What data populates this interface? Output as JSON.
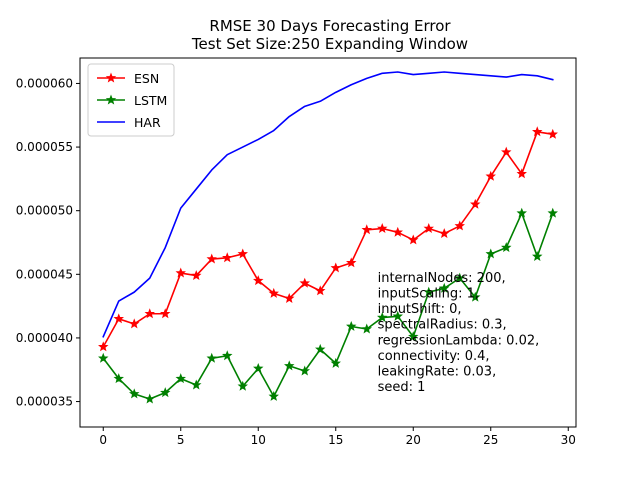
{
  "chart_data": {
    "type": "line",
    "title_lines": [
      "RMSE 30 Days Forecasting Error",
      "Test Set Size:250  Expanding Window"
    ],
    "xlabel": "",
    "ylabel": "",
    "xlim": [
      -1.5,
      30.5
    ],
    "ylim": [
      3.3e-05,
      6.2e-05
    ],
    "x_ticks": [
      0,
      5,
      10,
      15,
      20,
      25,
      30
    ],
    "x_tick_labels": [
      "0",
      "5",
      "10",
      "15",
      "20",
      "25",
      "30"
    ],
    "y_ticks": [
      3.5e-05,
      4e-05,
      4.5e-05,
      5e-05,
      5.5e-05,
      6e-05
    ],
    "y_tick_labels": [
      "0.000035",
      "0.000040",
      "0.000045",
      "0.000050",
      "0.000055",
      "0.000060"
    ],
    "grid": false,
    "legend_position": "top-left",
    "x": [
      0,
      1,
      2,
      3,
      4,
      5,
      6,
      7,
      8,
      9,
      10,
      11,
      12,
      13,
      14,
      15,
      16,
      17,
      18,
      19,
      20,
      21,
      22,
      23,
      24,
      25,
      26,
      27,
      28,
      29
    ],
    "series": [
      {
        "name": "ESN",
        "color": "#ff0000",
        "marker": "star",
        "values": [
          3.93e-05,
          4.15e-05,
          4.11e-05,
          4.19e-05,
          4.19e-05,
          4.51e-05,
          4.49e-05,
          4.62e-05,
          4.63e-05,
          4.66e-05,
          4.45e-05,
          4.35e-05,
          4.31e-05,
          4.43e-05,
          4.37e-05,
          4.55e-05,
          4.59e-05,
          4.85e-05,
          4.86e-05,
          4.83e-05,
          4.77e-05,
          4.86e-05,
          4.82e-05,
          4.88e-05,
          5.05e-05,
          5.27e-05,
          5.46e-05,
          5.29e-05,
          5.62e-05,
          5.6e-05
        ]
      },
      {
        "name": "LSTM",
        "color": "#008000",
        "marker": "star",
        "values": [
          3.84e-05,
          3.68e-05,
          3.56e-05,
          3.52e-05,
          3.57e-05,
          3.68e-05,
          3.63e-05,
          3.84e-05,
          3.86e-05,
          3.62e-05,
          3.76e-05,
          3.54e-05,
          3.78e-05,
          3.74e-05,
          3.91e-05,
          3.8e-05,
          4.09e-05,
          4.07e-05,
          4.16e-05,
          4.17e-05,
          4.01e-05,
          4.36e-05,
          4.39e-05,
          4.47e-05,
          4.32e-05,
          4.66e-05,
          4.71e-05,
          4.98e-05,
          4.64e-05,
          4.98e-05
        ]
      },
      {
        "name": "HAR",
        "color": "#0000ff",
        "marker": "none",
        "values": [
          4.01e-05,
          4.29e-05,
          4.36e-05,
          4.47e-05,
          4.71e-05,
          5.02e-05,
          5.17e-05,
          5.32e-05,
          5.44e-05,
          5.5e-05,
          5.56e-05,
          5.63e-05,
          5.74e-05,
          5.82e-05,
          5.86e-05,
          5.93e-05,
          5.99e-05,
          6.04e-05,
          6.08e-05,
          6.09e-05,
          6.07e-05,
          6.08e-05,
          6.09e-05,
          6.08e-05,
          6.07e-05,
          6.06e-05,
          6.05e-05,
          6.07e-05,
          6.06e-05,
          6.03e-05
        ]
      }
    ],
    "annotation": {
      "x": 17.7,
      "y": 4.44e-05,
      "lines": [
        "internalNodes: 200,",
        "inputScaling: 1,",
        "inputShift: 0,",
        "spectralRadius: 0.3,",
        "regressionLambda: 0.02,",
        "connectivity: 0.4,",
        "leakingRate: 0.03,",
        "seed: 1"
      ]
    }
  }
}
